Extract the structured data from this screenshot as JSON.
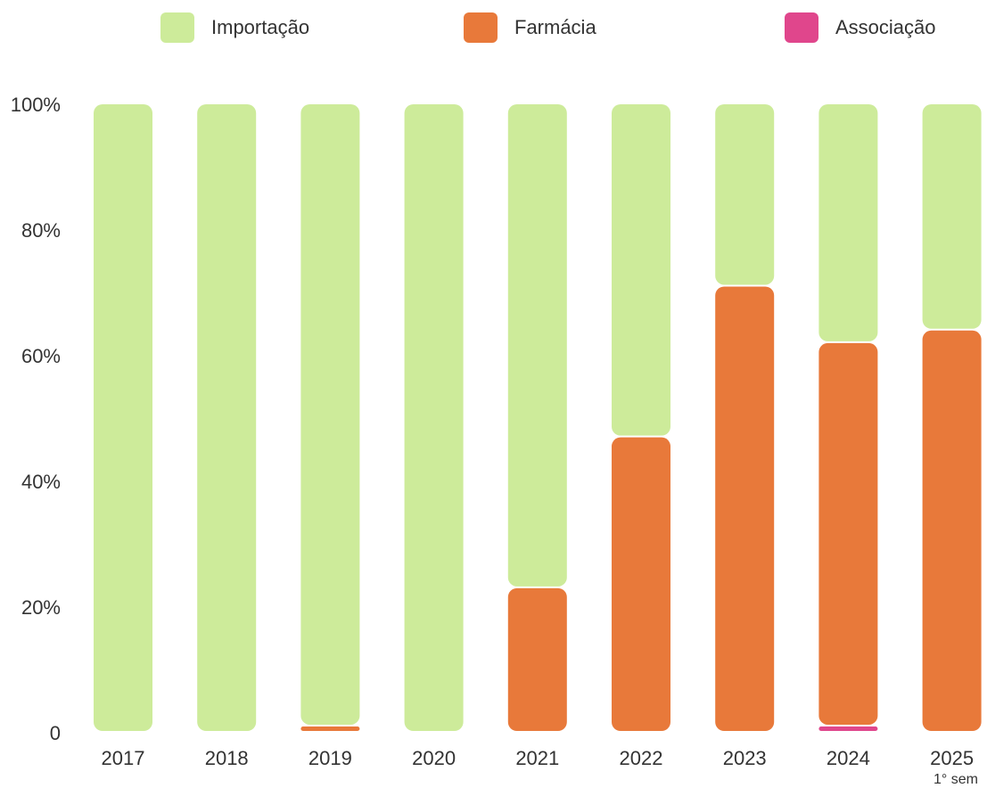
{
  "chart_data": {
    "type": "stacked_bar",
    "categories": [
      "2017",
      "2018",
      "2019",
      "2020",
      "2021",
      "2022",
      "2023",
      "2024",
      "2025"
    ],
    "annotation": "1° sem",
    "series": [
      {
        "name": "Importação",
        "color": "#cdeb9a",
        "values": [
          100,
          100,
          99,
          100,
          77,
          53,
          29,
          38,
          36
        ]
      },
      {
        "name": "Farmácia",
        "color": "#e8793a",
        "values": [
          0,
          0,
          1,
          0,
          23,
          47,
          71,
          61,
          64
        ]
      },
      {
        "name": "Associação",
        "color": "#e0468c",
        "values": [
          0,
          0,
          0,
          0,
          0,
          0,
          0,
          1,
          0
        ]
      }
    ],
    "ylim": [
      0,
      100
    ],
    "yticks": [
      0,
      {
        "value": 20,
        "label": "20%"
      },
      {
        "value": 40,
        "label": "40%"
      },
      {
        "value": 60,
        "label": "60%"
      },
      {
        "value": 80,
        "label": "80%"
      },
      {
        "value": 100,
        "label": "100%"
      }
    ],
    "legend": "top",
    "grid": false
  }
}
